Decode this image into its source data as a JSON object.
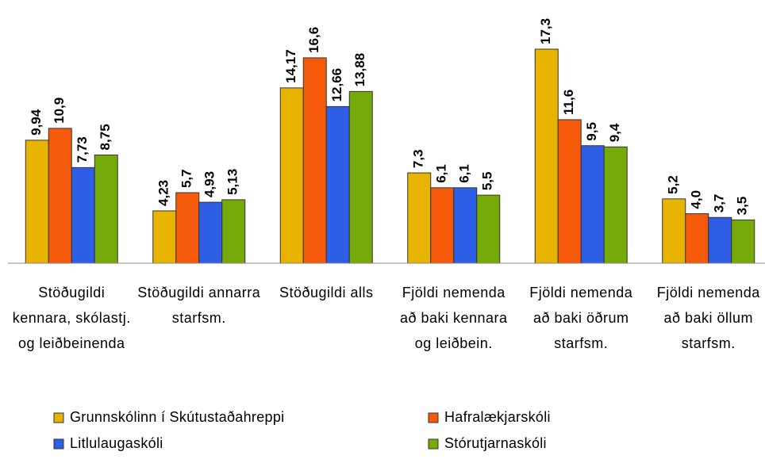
{
  "chart_data": {
    "type": "bar",
    "categories": [
      "Stöðugildi kennara, skólastj. og leiðbeinenda",
      "Stöðugildi annarra starfsm.",
      "Stöðugildi alls",
      "Fjöldi nemenda að baki kennara og leiðbein.",
      "Fjöldi nemenda að baki öðrum starfsm.",
      "Fjöldi nemenda að baki öllum starfsm."
    ],
    "series": [
      {
        "name": "Grunnskólinn í Skútustaðahreppi",
        "color": "#e8b400",
        "values": [
          9.94,
          4.23,
          14.17,
          7.3,
          17.3,
          5.2
        ],
        "value_labels": [
          "9,94",
          "4,23",
          "14,17",
          "7,3",
          "17,3",
          "5,2"
        ]
      },
      {
        "name": "Hafralækjarskóli",
        "color": "#f55a0a",
        "values": [
          10.9,
          5.7,
          16.6,
          6.1,
          11.6,
          4.0
        ],
        "value_labels": [
          "10,9",
          "5,7",
          "16,6",
          "6,1",
          "11,6",
          "4,0"
        ]
      },
      {
        "name": "Litlulaugaskóli",
        "color": "#2f5ee6",
        "values": [
          7.73,
          4.93,
          12.66,
          6.1,
          9.5,
          3.7
        ],
        "value_labels": [
          "7,73",
          "4,93",
          "12,66",
          "6,1",
          "9,5",
          "3,7"
        ]
      },
      {
        "name": "Stórutjarnaskóli",
        "color": "#76aa08",
        "values": [
          8.75,
          5.13,
          13.88,
          5.5,
          9.4,
          3.5
        ],
        "value_labels": [
          "8,75",
          "5,13",
          "13,88",
          "5,5",
          "9,4",
          "3,5"
        ]
      }
    ],
    "legend": "bottom"
  }
}
